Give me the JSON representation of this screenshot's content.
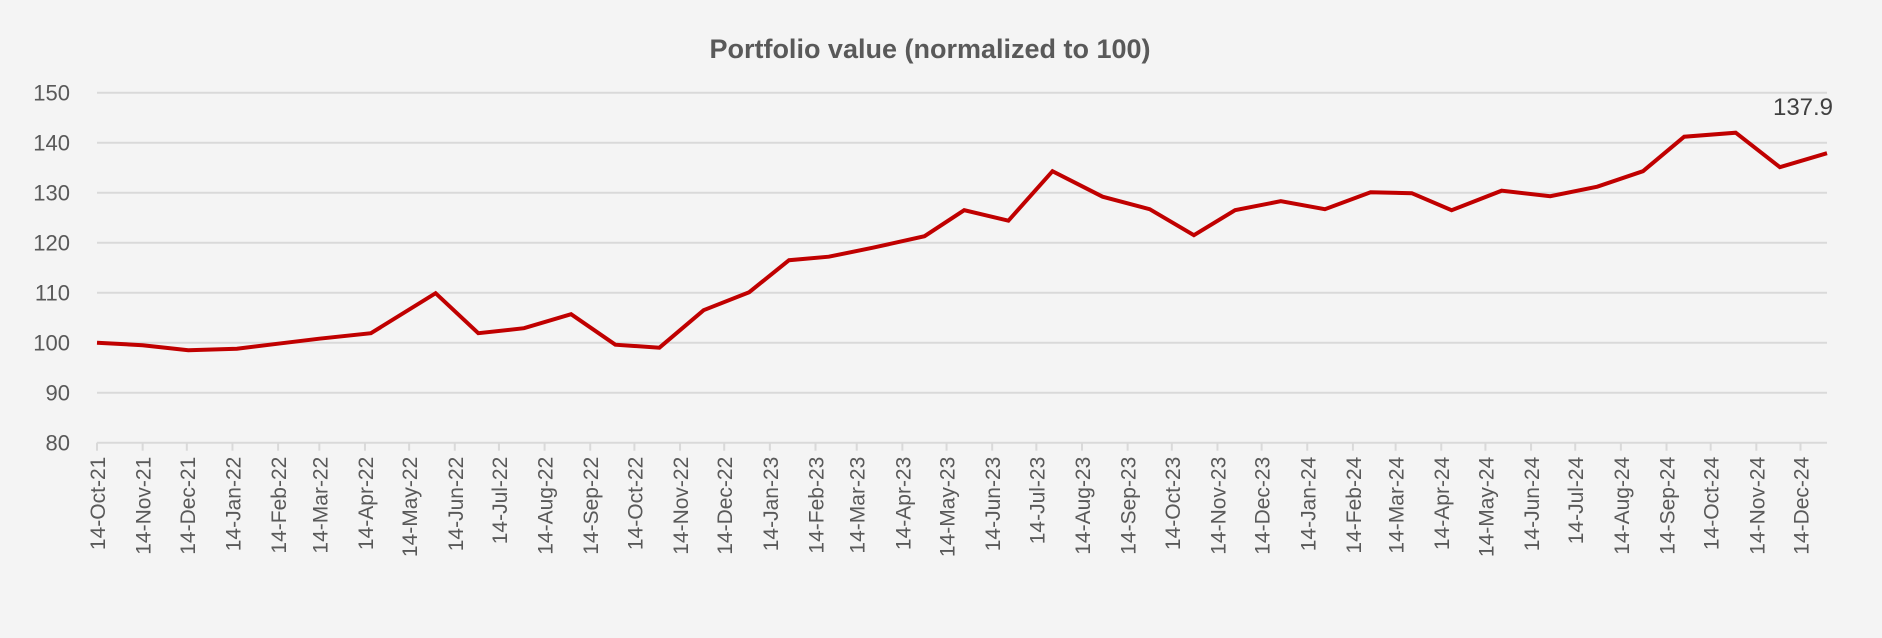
{
  "chart_data": {
    "type": "line",
    "title": "Portfolio value (normalized to 100)",
    "xlabel": "",
    "ylabel": "",
    "ylim": [
      80,
      150
    ],
    "yticks": [
      80,
      90,
      100,
      110,
      120,
      130,
      140,
      150
    ],
    "xlim": [
      "2021-10-14",
      "2025-01-01"
    ],
    "xtick_labels": [
      "14-Oct-21",
      "14-Nov-21",
      "14-Dec-21",
      "14-Jan-22",
      "14-Feb-22",
      "14-Mar-22",
      "14-Apr-22",
      "14-May-22",
      "14-Jun-22",
      "14-Jul-22",
      "14-Aug-22",
      "14-Sep-22",
      "14-Oct-22",
      "14-Nov-22",
      "14-Dec-22",
      "14-Jan-23",
      "14-Feb-23",
      "14-Mar-23",
      "14-Apr-23",
      "14-May-23",
      "14-Jun-23",
      "14-Jul-23",
      "14-Aug-23",
      "14-Sep-23",
      "14-Oct-23",
      "14-Nov-23",
      "14-Dec-23",
      "14-Jan-24",
      "14-Feb-24",
      "14-Mar-24",
      "14-Apr-24",
      "14-May-24",
      "14-Jun-24",
      "14-Jul-24",
      "14-Aug-24",
      "14-Sep-24",
      "14-Oct-24",
      "14-Nov-24",
      "14-Dec-24"
    ],
    "grid": true,
    "legend": "none",
    "series": [
      {
        "color": "#c00000",
        "points": [
          [
            "2021-10-14",
            100.0
          ],
          [
            "2021-11-14",
            99.5
          ],
          [
            "2021-12-15",
            98.5
          ],
          [
            "2022-01-17",
            98.8
          ],
          [
            "2022-02-14",
            99.8
          ],
          [
            "2022-03-14",
            100.8
          ],
          [
            "2022-04-18",
            101.9
          ],
          [
            "2022-06-01",
            109.9
          ],
          [
            "2022-06-30",
            101.9
          ],
          [
            "2022-07-31",
            102.9
          ],
          [
            "2022-09-01",
            105.7
          ],
          [
            "2022-10-01",
            99.6
          ],
          [
            "2022-10-31",
            99.0
          ],
          [
            "2022-11-30",
            106.5
          ],
          [
            "2022-12-31",
            110.1
          ],
          [
            "2023-01-27",
            116.5
          ],
          [
            "2023-02-23",
            117.2
          ],
          [
            "2023-03-25",
            119.0
          ],
          [
            "2023-04-29",
            121.3
          ],
          [
            "2023-05-26",
            126.5
          ],
          [
            "2023-06-25",
            124.4
          ],
          [
            "2023-07-25",
            134.3
          ],
          [
            "2023-08-28",
            129.2
          ],
          [
            "2023-09-29",
            126.7
          ],
          [
            "2023-10-29",
            121.5
          ],
          [
            "2023-11-26",
            126.5
          ],
          [
            "2023-12-27",
            128.3
          ],
          [
            "2024-01-26",
            126.7
          ],
          [
            "2024-02-26",
            130.1
          ],
          [
            "2024-03-25",
            129.9
          ],
          [
            "2024-04-21",
            126.5
          ],
          [
            "2024-05-25",
            130.4
          ],
          [
            "2024-06-27",
            129.3
          ],
          [
            "2024-07-29",
            131.2
          ],
          [
            "2024-08-29",
            134.3
          ],
          [
            "2024-09-26",
            141.2
          ],
          [
            "2024-10-31",
            142.0
          ],
          [
            "2024-11-30",
            135.1
          ],
          [
            "2025-01-01",
            137.9
          ]
        ]
      }
    ],
    "annotations": [
      {
        "text": "137.9",
        "date": "2025-01-01",
        "value": 137.9
      }
    ]
  }
}
